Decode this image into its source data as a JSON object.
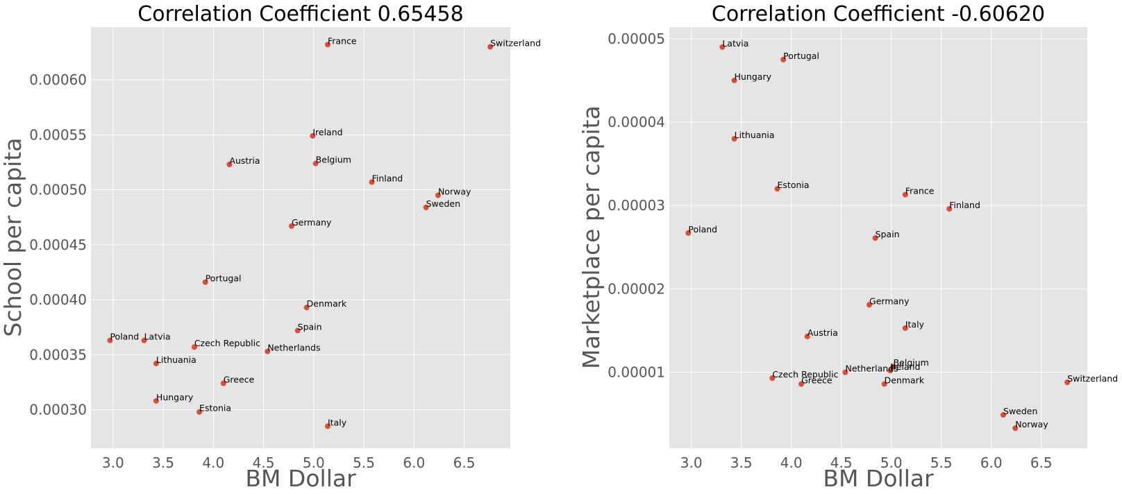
{
  "chart_data": [
    {
      "type": "scatter",
      "title": "Correlation Coefficient 0.65458",
      "xlabel": "BM Dollar",
      "ylabel": "School per capita",
      "xlim": [
        2.78,
        6.96
      ],
      "ylim": [
        0.000265,
        0.000648
      ],
      "xticks": [
        3.0,
        3.5,
        4.0,
        4.5,
        5.0,
        5.5,
        6.0,
        6.5
      ],
      "xtick_labels": [
        "3.0",
        "3.5",
        "4.0",
        "4.5",
        "5.0",
        "5.5",
        "6.0",
        "6.5"
      ],
      "yticks": [
        0.0003,
        0.00035,
        0.0004,
        0.00045,
        0.0005,
        0.00055,
        0.0006
      ],
      "ytick_labels": [
        "0.00030",
        "0.00035",
        "0.00040",
        "0.00045",
        "0.00050",
        "0.00055",
        "0.00060"
      ],
      "grid": true,
      "point_color": "#e24a33",
      "points": [
        {
          "label": "France",
          "x": 5.14,
          "y": 0.000632
        },
        {
          "label": "Switzerland",
          "x": 6.76,
          "y": 0.00063
        },
        {
          "label": "Ireland",
          "x": 4.99,
          "y": 0.000549
        },
        {
          "label": "Austria",
          "x": 4.16,
          "y": 0.000523
        },
        {
          "label": "Belgium",
          "x": 5.02,
          "y": 0.000524
        },
        {
          "label": "Finland",
          "x": 5.58,
          "y": 0.000507
        },
        {
          "label": "Norway",
          "x": 6.24,
          "y": 0.000495
        },
        {
          "label": "Sweden",
          "x": 6.12,
          "y": 0.000484
        },
        {
          "label": "Germany",
          "x": 4.78,
          "y": 0.000467
        },
        {
          "label": "Portugal",
          "x": 3.92,
          "y": 0.000416
        },
        {
          "label": "Denmark",
          "x": 4.93,
          "y": 0.000393
        },
        {
          "label": "Spain",
          "x": 4.84,
          "y": 0.000372
        },
        {
          "label": "Poland",
          "x": 2.97,
          "y": 0.000363
        },
        {
          "label": "Latvia",
          "x": 3.31,
          "y": 0.000363
        },
        {
          "label": "Czech Republic",
          "x": 3.81,
          "y": 0.000357
        },
        {
          "label": "Netherlands",
          "x": 4.54,
          "y": 0.000353
        },
        {
          "label": "Lithuania",
          "x": 3.43,
          "y": 0.000342
        },
        {
          "label": "Greece",
          "x": 4.1,
          "y": 0.000324
        },
        {
          "label": "Hungary",
          "x": 3.43,
          "y": 0.000308
        },
        {
          "label": "Estonia",
          "x": 3.86,
          "y": 0.000298
        },
        {
          "label": "Italy",
          "x": 5.14,
          "y": 0.000285
        }
      ]
    },
    {
      "type": "scatter",
      "title": "Correlation Coefficient -0.60620",
      "xlabel": "BM Dollar",
      "ylabel": "Marketplace per capita",
      "xlim": [
        2.78,
        6.96
      ],
      "ylim": [
        9e-07,
        5.14e-05
      ],
      "xticks": [
        3.0,
        3.5,
        4.0,
        4.5,
        5.0,
        5.5,
        6.0,
        6.5
      ],
      "xtick_labels": [
        "3.0",
        "3.5",
        "4.0",
        "4.5",
        "5.0",
        "5.5",
        "6.0",
        "6.5"
      ],
      "yticks": [
        1e-05,
        2e-05,
        3e-05,
        4e-05,
        5e-05
      ],
      "ytick_labels": [
        "0.00001",
        "0.00002",
        "0.00003",
        "0.00004",
        "0.00005"
      ],
      "grid": true,
      "point_color": "#e24a33",
      "points": [
        {
          "label": "Latvia",
          "x": 3.31,
          "y": 4.9e-05
        },
        {
          "label": "Portugal",
          "x": 3.92,
          "y": 4.75e-05
        },
        {
          "label": "Hungary",
          "x": 3.43,
          "y": 4.5e-05
        },
        {
          "label": "Lithuania",
          "x": 3.43,
          "y": 3.8e-05
        },
        {
          "label": "Estonia",
          "x": 3.86,
          "y": 3.2e-05
        },
        {
          "label": "France",
          "x": 5.14,
          "y": 3.13e-05
        },
        {
          "label": "Finland",
          "x": 5.58,
          "y": 2.96e-05
        },
        {
          "label": "Poland",
          "x": 2.97,
          "y": 2.67e-05
        },
        {
          "label": "Spain",
          "x": 4.84,
          "y": 2.61e-05
        },
        {
          "label": "Germany",
          "x": 4.78,
          "y": 1.81e-05
        },
        {
          "label": "Italy",
          "x": 5.14,
          "y": 1.53e-05
        },
        {
          "label": "Austria",
          "x": 4.16,
          "y": 1.43e-05
        },
        {
          "label": "Belgium",
          "x": 5.02,
          "y": 1.07e-05
        },
        {
          "label": "Ireland",
          "x": 4.99,
          "y": 1.02e-05
        },
        {
          "label": "Netherlands",
          "x": 4.54,
          "y": 1e-05
        },
        {
          "label": "Czech Republic",
          "x": 3.81,
          "y": 9.3e-06
        },
        {
          "label": "Greece",
          "x": 4.1,
          "y": 8.6e-06
        },
        {
          "label": "Denmark",
          "x": 4.93,
          "y": 8.6e-06
        },
        {
          "label": "Switzerland",
          "x": 6.76,
          "y": 8.8e-06
        },
        {
          "label": "Sweden",
          "x": 6.12,
          "y": 4.9e-06
        },
        {
          "label": "Norway",
          "x": 6.24,
          "y": 3.3e-06
        }
      ]
    }
  ]
}
